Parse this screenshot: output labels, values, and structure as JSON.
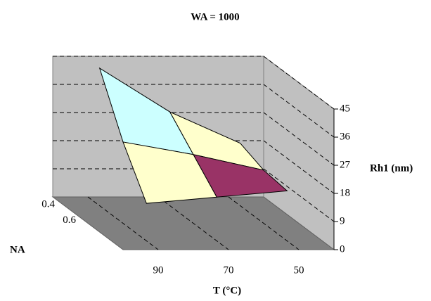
{
  "chart_data": {
    "type": "surface",
    "title": "WA = 1000",
    "x_label": "T (°C)",
    "y_label": "NA",
    "z_label": "Rh1 (nm)",
    "categories": [
      "90",
      "70",
      "50"
    ],
    "rows": [
      "0.4",
      "0.6",
      null
    ],
    "series": [
      {
        "name": "0.4",
        "values": [
          44,
          30,
          20
        ]
      },
      {
        "name": "0.6",
        "values": [
          26,
          22,
          17
        ]
      },
      {
        "name": null,
        "values": [
          12,
          14,
          16
        ]
      }
    ],
    "zlim": [
      0,
      45
    ],
    "zticks": [
      0,
      9,
      18,
      27,
      36,
      45
    ],
    "band_colors": [
      "#9999ff",
      "#993366",
      "#ffffcc",
      "#ccffff",
      "#660066"
    ],
    "grid": true
  }
}
